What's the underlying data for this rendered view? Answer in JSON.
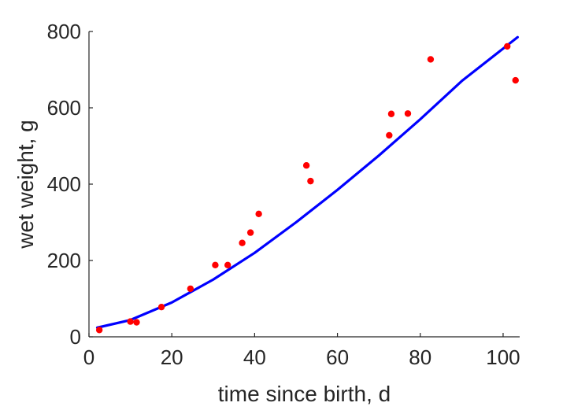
{
  "chart_data": {
    "type": "scatter",
    "title": "",
    "xlabel": "time since birth, d",
    "ylabel": "wet weight, g",
    "xlim": [
      0,
      104
    ],
    "ylim": [
      0,
      800
    ],
    "x_ticks": [
      0,
      20,
      40,
      60,
      80,
      100
    ],
    "y_ticks": [
      0,
      200,
      400,
      600,
      800
    ],
    "x_tick_labels": [
      "0",
      "20",
      "40",
      "60",
      "80",
      "100"
    ],
    "y_tick_labels": [
      "0",
      "200",
      "400",
      "600",
      "800"
    ],
    "grid": false,
    "legend": "none",
    "series": [
      {
        "type": "scatter",
        "color": "#ff0000",
        "points": [
          [
            2.5,
            18
          ],
          [
            10,
            40
          ],
          [
            11.5,
            38
          ],
          [
            17.5,
            78
          ],
          [
            24.5,
            126
          ],
          [
            30.5,
            188
          ],
          [
            33.5,
            188
          ],
          [
            37,
            246
          ],
          [
            39,
            273
          ],
          [
            41,
            322
          ],
          [
            52.5,
            449
          ],
          [
            53.5,
            408
          ],
          [
            72.5,
            528
          ],
          [
            73,
            584
          ],
          [
            77,
            585
          ],
          [
            82.5,
            727
          ],
          [
            101,
            761
          ],
          [
            103,
            672
          ]
        ]
      },
      {
        "type": "line",
        "color": "#0000ff",
        "points": [
          [
            2,
            24
          ],
          [
            10,
            44
          ],
          [
            20,
            90
          ],
          [
            30,
            150
          ],
          [
            40,
            220
          ],
          [
            50,
            300
          ],
          [
            60,
            385
          ],
          [
            70,
            475
          ],
          [
            80,
            570
          ],
          [
            90,
            670
          ],
          [
            103.5,
            785
          ]
        ]
      }
    ]
  }
}
